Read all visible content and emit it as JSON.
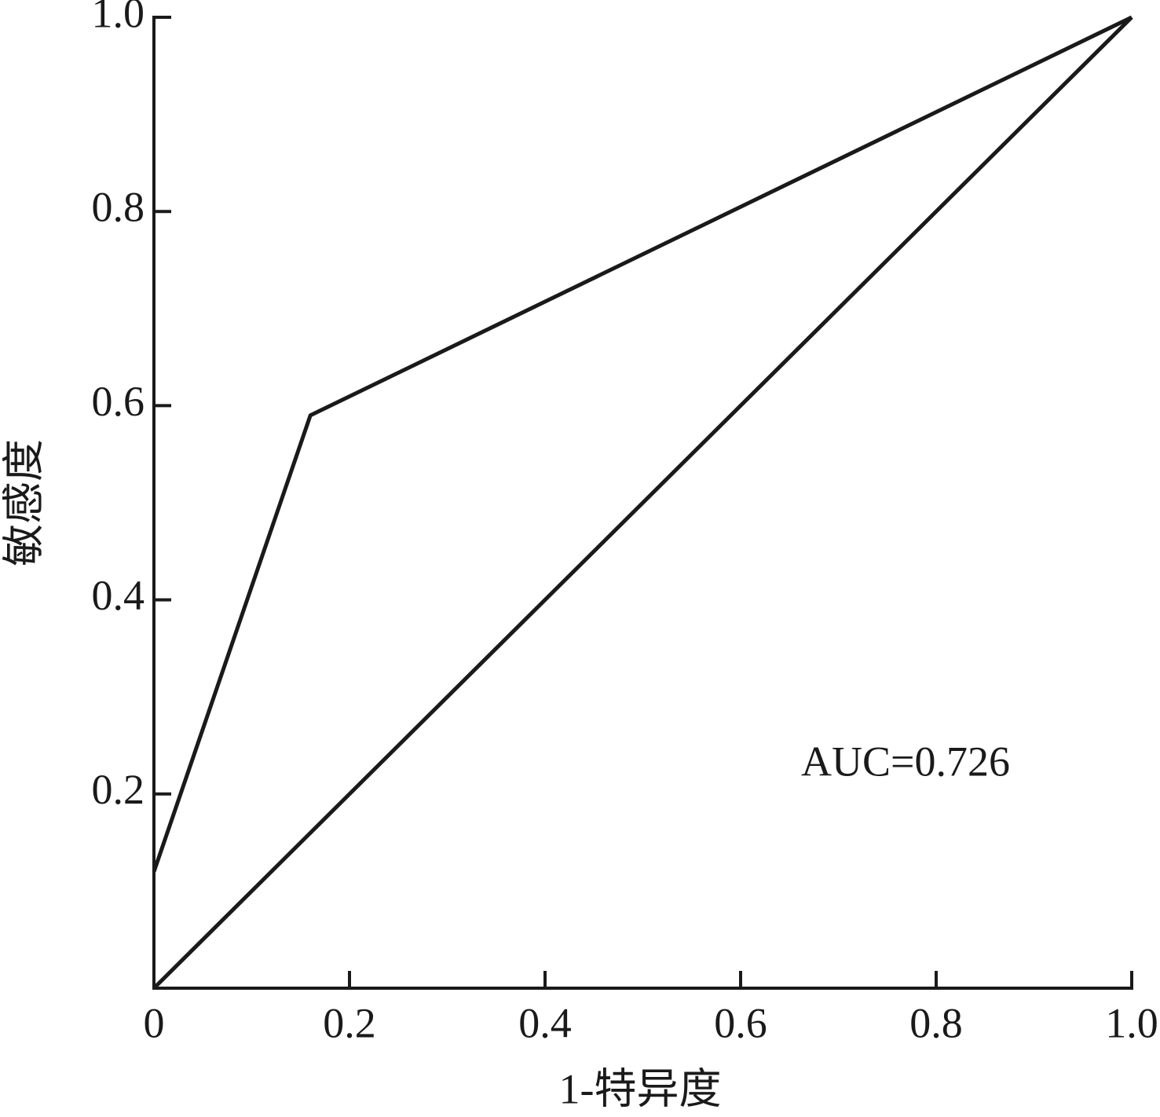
{
  "chart_data": {
    "type": "line",
    "x_label": "1-特异度",
    "y_label": "敏感度",
    "annotation": "AUC=0.726",
    "series": [
      {
        "color": "#1a1a1a",
        "x": [
          0,
          0.16,
          1
        ],
        "values": [
          0.12,
          0.59,
          1
        ]
      },
      {
        "color": "#1a1a1a",
        "x": [
          0,
          1
        ],
        "values": [
          0,
          1
        ]
      }
    ],
    "xlim": [
      0,
      1
    ],
    "ylim": [
      0,
      1
    ],
    "xticks": [
      0,
      0.2,
      0.4,
      0.6,
      0.8,
      {
        "value": 1,
        "label": "1.0"
      }
    ],
    "yticks": [
      0.2,
      0.4,
      0.6,
      0.8,
      {
        "value": 1,
        "label": "1.0"
      }
    ],
    "grid": false
  }
}
